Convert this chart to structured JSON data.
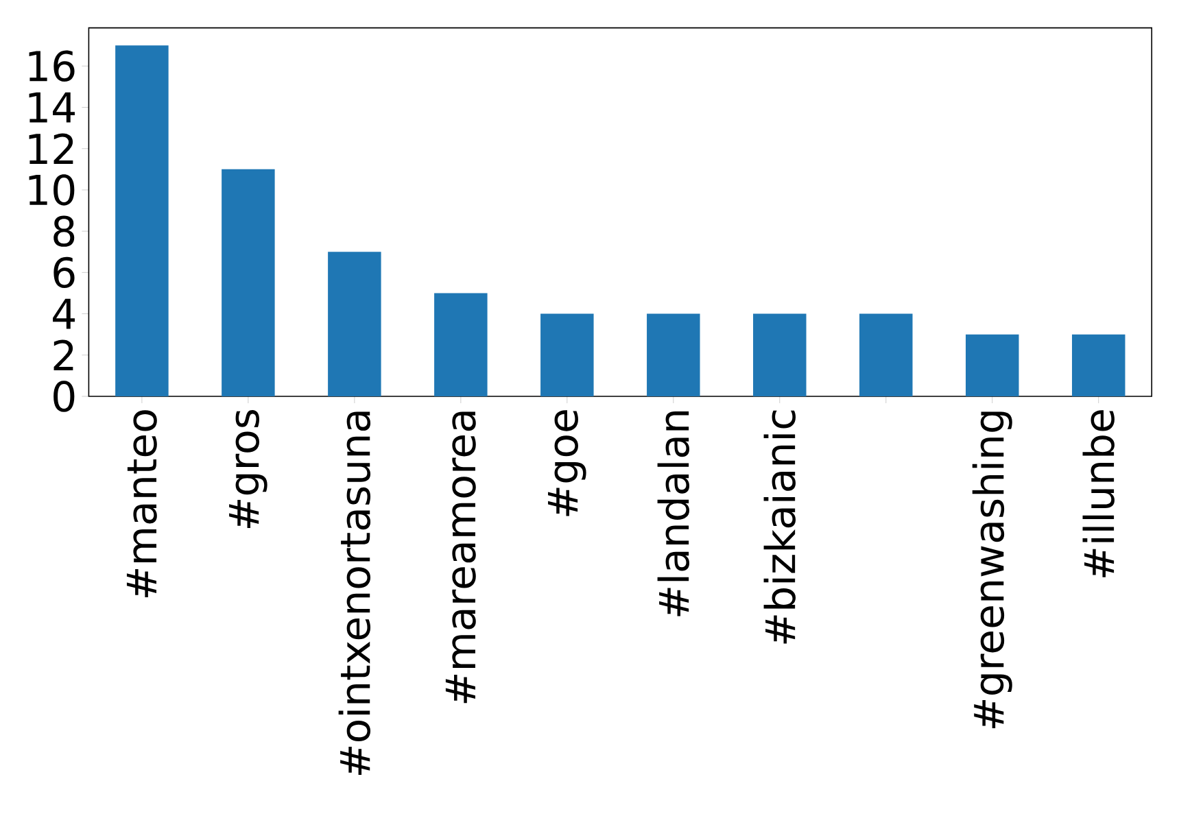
{
  "chart_data": {
    "type": "bar",
    "categories": [
      "#manteo",
      "#gros",
      "#ointxenortasuna",
      "#mareamorea",
      "#goe",
      "#landalan",
      "#bizkaianic",
      null,
      "#greenwashing",
      "#illunbe"
    ],
    "values": [
      17,
      11,
      7,
      5,
      4,
      4,
      4,
      4,
      3,
      3
    ],
    "color": "#1f77b4",
    "ylim": [
      0,
      17.85
    ],
    "yticks": [
      0,
      2,
      4,
      6,
      8,
      10,
      12,
      14,
      16
    ]
  }
}
